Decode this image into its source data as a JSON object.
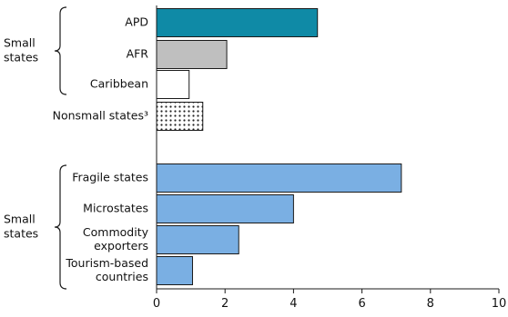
{
  "chart_data": {
    "type": "bar",
    "orientation": "horizontal",
    "groups": [
      {
        "label": "Small states",
        "categories": [
          "APD",
          "AFR",
          "Caribbean"
        ]
      },
      {
        "label": "Small states",
        "categories": [
          "Fragile states",
          "Microstates",
          "Commodity exporters",
          "Tourism-based countries"
        ]
      }
    ],
    "categories": [
      "APD",
      "AFR",
      "Caribbean",
      "Nonsmall states³",
      "Fragile states",
      "Microstates",
      "Commodity exporters",
      "Tourism-based countries"
    ],
    "values": [
      4.7,
      2.05,
      0.95,
      1.35,
      7.15,
      4.0,
      2.4,
      1.05
    ],
    "bar_styles": [
      {
        "fill": "#0f8aa6",
        "pattern": "solid"
      },
      {
        "fill": "#bfbfbf",
        "pattern": "solid"
      },
      {
        "fill": "#ffffff",
        "pattern": "solid"
      },
      {
        "fill": "#ffffff",
        "pattern": "dots"
      },
      {
        "fill": "#7aafe3",
        "pattern": "solid"
      },
      {
        "fill": "#7aafe3",
        "pattern": "solid"
      },
      {
        "fill": "#7aafe3",
        "pattern": "solid"
      },
      {
        "fill": "#7aafe3",
        "pattern": "solid"
      }
    ],
    "category_label_lines": [
      [
        "APD"
      ],
      [
        "AFR"
      ],
      [
        "Caribbean"
      ],
      [
        "Nonsmall states³"
      ],
      [
        "Fragile states"
      ],
      [
        "Microstates"
      ],
      [
        "Commodity",
        "exporters"
      ],
      [
        "Tourism-based",
        "countries"
      ]
    ],
    "group_label_lines": [
      [
        "Small",
        "states"
      ],
      [
        "Small",
        "states"
      ]
    ],
    "xlim": [
      0,
      10
    ],
    "xticks": [
      0,
      2,
      4,
      6,
      8,
      10
    ],
    "grid": false,
    "legend": "none",
    "title": "",
    "xlabel": "",
    "ylabel": ""
  }
}
